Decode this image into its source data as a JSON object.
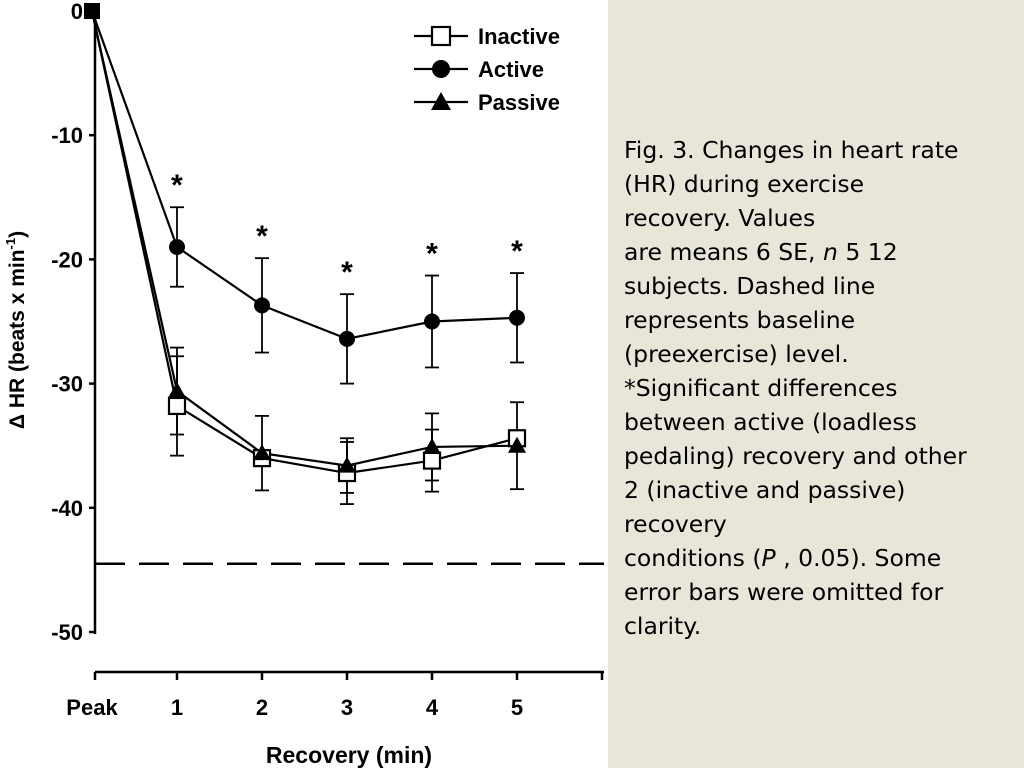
{
  "chart_data": {
    "type": "line",
    "xlabel": "Recovery (min)",
    "ylabel_prefix": "Δ HR (beats x min",
    "ylabel_sup": "-1",
    "ylabel_suffix": ")",
    "categories": [
      "Peak",
      "1",
      "2",
      "3",
      "4",
      "5"
    ],
    "yticks": [
      "0",
      "-10",
      "-20",
      "-30",
      "-40",
      "-50"
    ],
    "ylim": [
      -50,
      0
    ],
    "series": [
      {
        "name": "Inactive",
        "marker": "square-open",
        "values": [
          0,
          -31.8,
          -36.0,
          -37.2,
          -36.2,
          -34.4
        ],
        "error": [
          null,
          4.0,
          null,
          2.5,
          2.5,
          null
        ]
      },
      {
        "name": "Active",
        "marker": "circle-filled",
        "values": [
          0,
          -19.0,
          -23.7,
          -26.4,
          -25.0,
          -24.7
        ],
        "error": [
          null,
          3.2,
          3.8,
          3.6,
          3.7,
          3.6
        ]
      },
      {
        "name": "Passive",
        "marker": "triangle-filled",
        "values": [
          0,
          -30.6,
          -35.6,
          -36.6,
          -35.1,
          -35.0
        ],
        "error": [
          null,
          3.5,
          3.0,
          2.2,
          2.7,
          3.5
        ]
      }
    ],
    "significance": {
      "symbol": "*",
      "categories": [
        "1",
        "2",
        "3",
        "4",
        "5"
      ]
    },
    "baseline": {
      "value": -44.5,
      "style": "dashed"
    },
    "grid": false,
    "legend_position": "top-right"
  },
  "caption": {
    "lines": [
      "Fig. 3. Changes in heart rate",
      "(HR) during exercise",
      "recovery. Values",
      "are means 6 SE, ",
      "subjects. Dashed line",
      "represents baseline",
      "(preexercise) level.",
      "*Significant differences",
      "between active (loadless",
      "pedaling) recovery and other",
      "2 (inactive and passive)",
      "recovery",
      "conditions (",
      "error bars were omitted for",
      "clarity."
    ],
    "n_italic": "n",
    "n_rest": " 5 12",
    "p_italic": "P",
    "p_rest": " , 0.05). Some"
  },
  "colors": {
    "panel_bg": "#e8e6d9",
    "ink": "#000000"
  }
}
